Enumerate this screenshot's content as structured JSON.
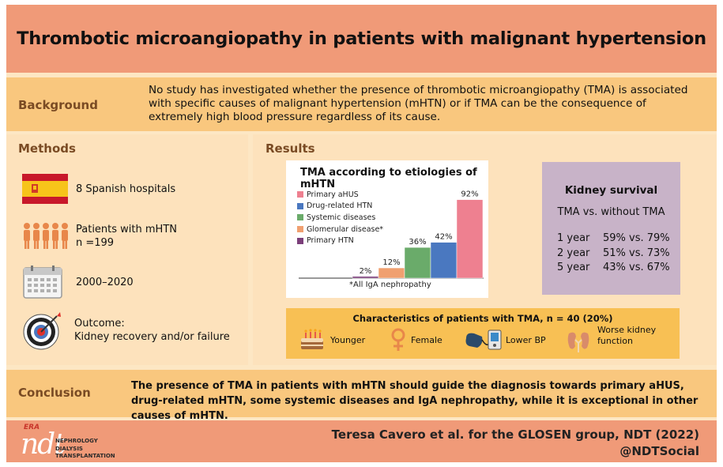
{
  "title": "Thrombotic microangiopathy in patients with malignant hypertension",
  "background": {
    "label": "Background",
    "text": "No study has investigated whether the presence of thrombotic microangiopathy (TMA) is associated with specific causes of malignant hypertension (mHTN) or if TMA can be the consequence of extremely high blood pressure regardless of its cause."
  },
  "methods": {
    "label": "Methods",
    "items": [
      {
        "line1": "8 Spanish hospitals",
        "line2": "",
        "icon": "spain-flag-icon"
      },
      {
        "line1": "Patients with mHTN",
        "line2": "n =199",
        "icon": "patients-icon"
      },
      {
        "line1": "2000–2020",
        "line2": "",
        "icon": "calendar-icon"
      },
      {
        "line1": "Outcome:",
        "line2": "Kidney recovery and/or failure",
        "icon": "target-icon"
      }
    ]
  },
  "results": {
    "label": "Results"
  },
  "chart_data": {
    "type": "bar",
    "title": "TMA according to etiologies of mHTN",
    "categories": [
      "Primary HTN",
      "Glomerular disease*",
      "Systemic diseases",
      "Drug-related HTN",
      "Primary aHUS"
    ],
    "values": [
      2,
      12,
      36,
      42,
      92
    ],
    "value_labels": [
      "2%",
      "12%",
      "36%",
      "42%",
      "92%"
    ],
    "colors": [
      "#7b3f7a",
      "#f0a070",
      "#6aab6a",
      "#4a78c0",
      "#ee8090"
    ],
    "legend_order": [
      "Primary aHUS",
      "Drug-related HTN",
      "Systemic diseases",
      "Glomerular disease*",
      "Primary HTN"
    ],
    "legend_colors": [
      "#ee8090",
      "#4a78c0",
      "#6aab6a",
      "#f0a070",
      "#7b3f7a"
    ],
    "ylim": [
      0,
      100
    ],
    "footnote": "*All IgA nephropathy"
  },
  "kidney": {
    "title": "Kidney survival",
    "subtitle": "TMA vs. without TMA",
    "rows": [
      {
        "year": "1 year",
        "value": "59% vs. 79%"
      },
      {
        "year": "2 year",
        "value": "51% vs. 73%"
      },
      {
        "year": "5 year",
        "value": "43% vs. 67%"
      }
    ]
  },
  "characteristics": {
    "title": "Characteristics of patients with TMA, n = 40 (20%)",
    "items": [
      {
        "label": "Younger",
        "label2": "",
        "icon": "birthday-cake-icon"
      },
      {
        "label": "Female",
        "label2": "",
        "icon": "female-symbol-icon"
      },
      {
        "label": "Lower BP",
        "label2": "",
        "icon": "blood-pressure-monitor-icon"
      },
      {
        "label": "Worse kidney",
        "label2": "function",
        "icon": "kidneys-icon"
      }
    ]
  },
  "conclusion": {
    "label": "Conclusion",
    "text": "The presence of TMA in patients with mHTN should guide the diagnosis towards primary aHUS, drug-related mHTN, some systemic diseases and IgA nephropathy, while it is exceptional in other causes of mHTN."
  },
  "footer": {
    "logo_era": "ERA",
    "logo_ndt": "ndt",
    "logo_line1": "NEPHROLOGY",
    "logo_line2": "DIALYSIS",
    "logo_line3": "TRANSPLANTATION",
    "citation": "Teresa Cavero et al. for the GLOSEN group, NDT (2022)",
    "handle": "@NDTSocial"
  },
  "colors": {
    "title_bar": "#f09a78",
    "band": "#f9c77e",
    "panel": "#fde2bc",
    "label_brown": "#7a4b24",
    "kidney_card": "#c8b3c8",
    "characteristics": "#f8c054"
  }
}
